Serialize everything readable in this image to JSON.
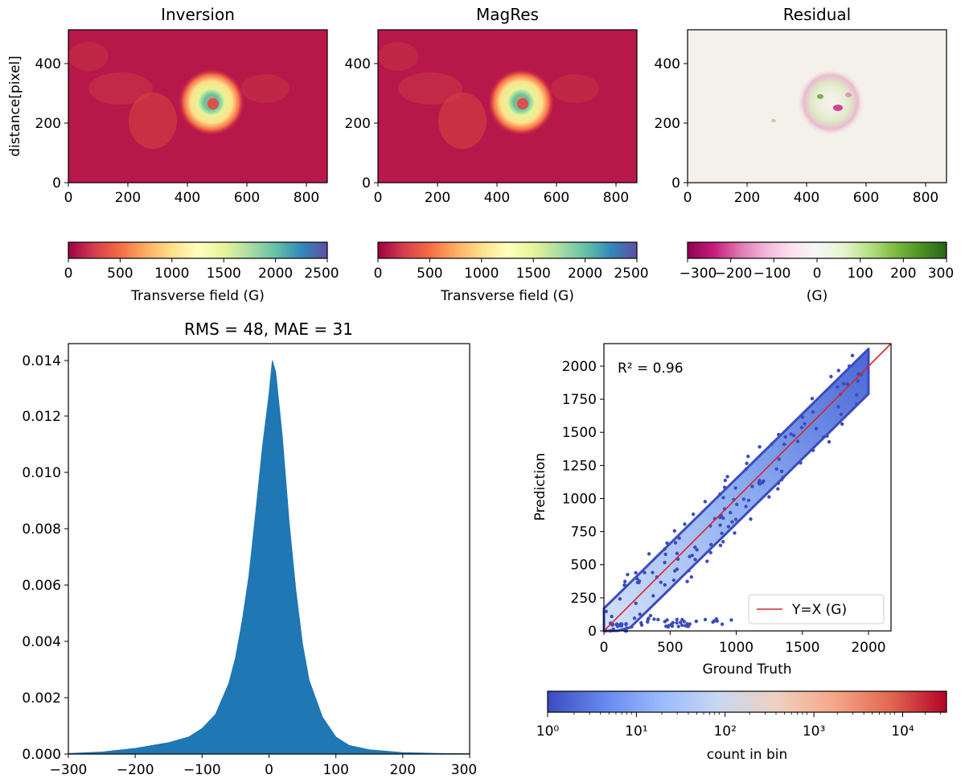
{
  "chart_data": [
    {
      "type": "heatmap",
      "title": "Inversion",
      "ylabel": "distance[pixel]",
      "xlim": [
        0,
        870
      ],
      "ylim": [
        0,
        512
      ],
      "xticks": [
        "0",
        "200",
        "400",
        "600",
        "800"
      ],
      "yticks": [
        "0",
        "200",
        "400"
      ],
      "colorbar": {
        "label": "Transverse field (G)",
        "range": [
          0,
          2500
        ],
        "colormap": "Spectral_r",
        "ticks": [
          "0",
          "500",
          "1000",
          "1500",
          "2000",
          "2500"
        ],
        "colors": [
          "#9e0142",
          "#d53e4f",
          "#f46d43",
          "#fdae61",
          "#fee08b",
          "#ffffbf",
          "#e6f598",
          "#abdda4",
          "#66c2a5",
          "#3288bd",
          "#5e4fa2"
        ]
      },
      "background_color": "#b8174a"
    },
    {
      "type": "heatmap",
      "title": "MagRes",
      "xlim": [
        0,
        870
      ],
      "ylim": [
        0,
        512
      ],
      "xticks": [
        "0",
        "200",
        "400",
        "600",
        "800"
      ],
      "yticks": [
        "0",
        "200",
        "400"
      ],
      "colorbar": {
        "label": "Transverse field (G)",
        "range": [
          0,
          2500
        ],
        "colormap": "Spectral_r",
        "ticks": [
          "0",
          "500",
          "1000",
          "1500",
          "2000",
          "2500"
        ],
        "colors": [
          "#9e0142",
          "#d53e4f",
          "#f46d43",
          "#fdae61",
          "#fee08b",
          "#ffffbf",
          "#e6f598",
          "#abdda4",
          "#66c2a5",
          "#3288bd",
          "#5e4fa2"
        ]
      },
      "background_color": "#b8174a"
    },
    {
      "type": "heatmap",
      "title": "Residual",
      "xlim": [
        0,
        870
      ],
      "ylim": [
        0,
        512
      ],
      "xticks": [
        "0",
        "200",
        "400",
        "600",
        "800"
      ],
      "yticks": [
        "0",
        "200",
        "400"
      ],
      "colorbar": {
        "label": "(G)",
        "range": [
          -300,
          300
        ],
        "colormap": "PiYG",
        "ticks": [
          "−300",
          "−200",
          "−100",
          "0",
          "100",
          "200",
          "300"
        ],
        "colors": [
          "#8e0152",
          "#c51b7d",
          "#de77ae",
          "#f1b6da",
          "#fde0ef",
          "#f7f7f7",
          "#e6f5d0",
          "#b8e186",
          "#7fbc41",
          "#4d9221",
          "#276419"
        ]
      },
      "background_color": "#f4f1ea"
    },
    {
      "type": "area",
      "title": "RMS = 48, MAE = 31",
      "xlim": [
        -300,
        300
      ],
      "ylim": [
        0,
        0.0145
      ],
      "xticks": [
        "−300",
        "−200",
        "−100",
        "0",
        "100",
        "200",
        "300"
      ],
      "yticks": [
        "0.000",
        "0.002",
        "0.004",
        "0.006",
        "0.008",
        "0.010",
        "0.012",
        "0.014"
      ],
      "x": [
        -300,
        -250,
        -200,
        -150,
        -120,
        -100,
        -80,
        -60,
        -50,
        -40,
        -30,
        -20,
        -10,
        0,
        5,
        10,
        20,
        30,
        40,
        50,
        60,
        80,
        100,
        120,
        150,
        200,
        250,
        300
      ],
      "y": [
        2e-05,
        7e-05,
        0.0002,
        0.0004,
        0.0006,
        0.0009,
        0.0014,
        0.0025,
        0.0034,
        0.0047,
        0.0063,
        0.0085,
        0.0108,
        0.0127,
        0.0139,
        0.0135,
        0.0112,
        0.0082,
        0.0058,
        0.0039,
        0.0026,
        0.0013,
        0.0006,
        0.0003,
        0.00015,
        5e-05,
        2e-05,
        1e-05
      ],
      "color": "#1f77b4"
    },
    {
      "type": "scatter",
      "xlabel": "Ground Truth",
      "ylabel": "Prediction",
      "xlim": [
        0,
        2170
      ],
      "ylim": [
        0,
        2170
      ],
      "xticks": [
        "0",
        "500",
        "1000",
        "1500",
        "2000"
      ],
      "yticks": [
        "0",
        "250",
        "500",
        "750",
        "1000",
        "1250",
        "1500",
        "1750",
        "2000"
      ],
      "annotation": "R² = 0.96",
      "annotation_color": "#0000cc",
      "legend": {
        "label": "Y=X (G)",
        "placement": "lower right",
        "color": "#d62728"
      },
      "band": {
        "center_slope": 0.98,
        "halfwidth": 170,
        "xmax": 2000
      },
      "outlier_row": {
        "y": 60,
        "x_range": [
          50,
          1000
        ]
      },
      "point_color": "#3b4cc0",
      "colorbar": {
        "label": "count in bin",
        "scale": "log",
        "range": [
          1,
          35000
        ],
        "colormap": "coolwarm",
        "ticks": [
          "10⁰",
          "10¹",
          "10²",
          "10³",
          "10⁴"
        ],
        "colors": [
          "#3b4cc0",
          "#6788ee",
          "#9abbff",
          "#c9d7f0",
          "#edd1c2",
          "#f7a889",
          "#e26952",
          "#b40426"
        ]
      }
    }
  ]
}
